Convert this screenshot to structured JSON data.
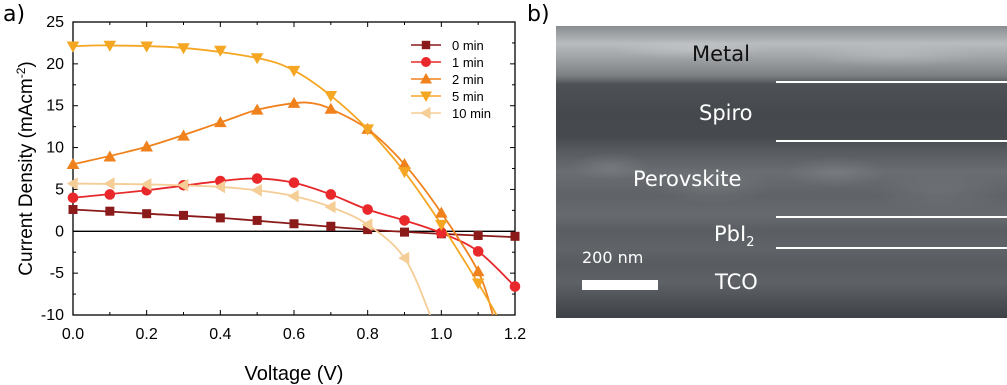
{
  "panels": {
    "a": "a)",
    "b": "b)"
  },
  "chart_data": {
    "type": "line",
    "xlabel": "Voltage (V)",
    "ylabel": "Current Density (mAcm",
    "ylabel_sup": "-2",
    "ylabel_end": ")",
    "xlim": [
      0.0,
      1.2
    ],
    "ylim": [
      -10,
      25
    ],
    "xticks": [
      "0.0",
      "0.2",
      "0.4",
      "0.6",
      "0.8",
      "1.0",
      "1.2"
    ],
    "yticks": [
      "-10",
      "-5",
      "0",
      "5",
      "10",
      "15",
      "20",
      "25"
    ],
    "legend_position": "top-right",
    "series": [
      {
        "name": "0 min",
        "color": "#8b1a1a",
        "marker": "square",
        "x": [
          0.0,
          0.1,
          0.2,
          0.3,
          0.4,
          0.5,
          0.6,
          0.7,
          0.8,
          0.9,
          1.0,
          1.1,
          1.2
        ],
        "y": [
          2.6,
          2.4,
          2.1,
          1.9,
          1.6,
          1.3,
          0.9,
          0.6,
          0.2,
          -0.1,
          -0.3,
          -0.5,
          -0.6
        ],
        "curve": [
          [
            0.0,
            2.6
          ],
          [
            0.2,
            2.1
          ],
          [
            0.4,
            1.6
          ],
          [
            0.6,
            0.9
          ],
          [
            0.8,
            0.2
          ],
          [
            1.0,
            -0.3
          ],
          [
            1.2,
            -0.7
          ]
        ]
      },
      {
        "name": "1 min",
        "color": "#e8282a",
        "marker": "circle",
        "x": [
          0.0,
          0.1,
          0.2,
          0.3,
          0.4,
          0.5,
          0.6,
          0.7,
          0.8,
          0.9,
          1.0,
          1.1,
          1.2
        ],
        "y": [
          4.0,
          4.4,
          4.9,
          5.5,
          6.0,
          6.3,
          5.8,
          4.4,
          2.6,
          1.3,
          -0.2,
          -2.4,
          -6.6
        ],
        "curve": [
          [
            0.0,
            4.0
          ],
          [
            0.2,
            4.9
          ],
          [
            0.4,
            6.0
          ],
          [
            0.5,
            6.3
          ],
          [
            0.6,
            5.8
          ],
          [
            0.7,
            4.4
          ],
          [
            0.8,
            2.6
          ],
          [
            0.9,
            1.3
          ],
          [
            1.0,
            -0.2
          ],
          [
            1.1,
            -2.4
          ],
          [
            1.2,
            -6.6
          ]
        ]
      },
      {
        "name": "2 min",
        "color": "#f0821e",
        "marker": "triangle-up",
        "x": [
          0.0,
          0.1,
          0.2,
          0.3,
          0.4,
          0.5,
          0.6,
          0.7,
          0.8,
          0.9,
          1.0,
          1.1
        ],
        "y": [
          8.0,
          8.9,
          10.1,
          11.4,
          13.0,
          14.5,
          15.3,
          14.6,
          12.2,
          8.0,
          2.2,
          -4.8
        ],
        "curve": [
          [
            0.0,
            8.0
          ],
          [
            0.2,
            10.1
          ],
          [
            0.4,
            13.0
          ],
          [
            0.5,
            14.5
          ],
          [
            0.6,
            15.3
          ],
          [
            0.65,
            15.3
          ],
          [
            0.7,
            14.6
          ],
          [
            0.8,
            12.2
          ],
          [
            0.9,
            8.0
          ],
          [
            1.0,
            2.2
          ],
          [
            1.1,
            -4.8
          ],
          [
            1.14,
            -10
          ]
        ]
      },
      {
        "name": "5 min",
        "color": "#f5a623",
        "marker": "triangle-down",
        "x": [
          0.0,
          0.1,
          0.2,
          0.3,
          0.4,
          0.5,
          0.6,
          0.7,
          0.8,
          0.9,
          1.0,
          1.1
        ],
        "y": [
          22.1,
          22.2,
          22.1,
          21.9,
          21.6,
          20.7,
          19.2,
          16.2,
          12.2,
          7.1,
          0.8,
          -6.2
        ],
        "curve": [
          [
            0.0,
            22.1
          ],
          [
            0.1,
            22.2
          ],
          [
            0.3,
            21.9
          ],
          [
            0.5,
            20.7
          ],
          [
            0.6,
            19.2
          ],
          [
            0.7,
            16.2
          ],
          [
            0.8,
            12.2
          ],
          [
            0.9,
            7.1
          ],
          [
            1.0,
            0.8
          ],
          [
            1.1,
            -6.2
          ],
          [
            1.15,
            -10
          ]
        ]
      },
      {
        "name": "10 min",
        "color": "#f5cd96",
        "marker": "triangle-left",
        "x": [
          0.0,
          0.1,
          0.2,
          0.3,
          0.4,
          0.5,
          0.6,
          0.7,
          0.8,
          0.9
        ],
        "y": [
          5.7,
          5.7,
          5.6,
          5.5,
          5.3,
          4.9,
          4.2,
          2.9,
          0.8,
          -3.2
        ],
        "curve": [
          [
            0.0,
            5.7
          ],
          [
            0.2,
            5.6
          ],
          [
            0.4,
            5.3
          ],
          [
            0.5,
            4.9
          ],
          [
            0.6,
            4.2
          ],
          [
            0.7,
            2.9
          ],
          [
            0.8,
            0.8
          ],
          [
            0.9,
            -3.2
          ],
          [
            0.97,
            -10
          ]
        ]
      }
    ]
  },
  "sem": {
    "layers": [
      {
        "label": "Metal",
        "dark": true
      },
      {
        "label": "Spiro",
        "dark": false
      },
      {
        "label": "Perovskite",
        "dark": false
      },
      {
        "label": "PbI",
        "sub": "2",
        "dark": false
      },
      {
        "label": "TCO",
        "dark": false
      }
    ],
    "scale_bar_label": "200 nm"
  }
}
